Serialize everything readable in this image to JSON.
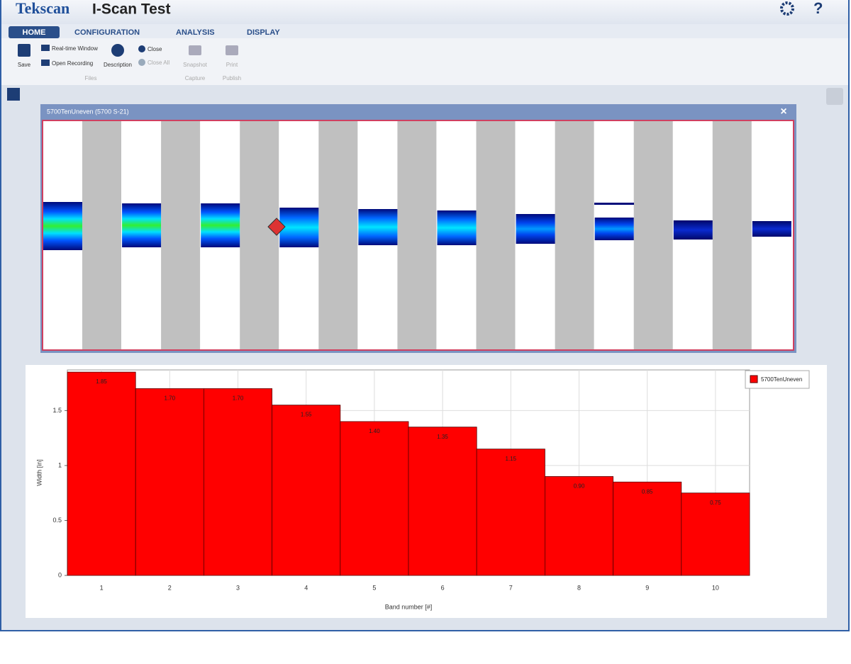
{
  "app": {
    "brand": "Tekscan",
    "title": "I-Scan Test",
    "help": "?",
    "tabs": [
      "HOME",
      "CONFIGURATION",
      "ANALYSIS",
      "DISPLAY"
    ],
    "ribbon": {
      "save": "Save",
      "realtime": "Real-time Window",
      "open": "Open Recording",
      "description": "Description",
      "close": "Close",
      "close_all": "Close All",
      "files": "Files",
      "snapshot": "Snapshot",
      "capture": "Capture",
      "print": "Print",
      "publish": "Publish"
    },
    "window_title": "5700TenUneven (5700 S-21)"
  },
  "chart_data": {
    "type": "bar",
    "xlabel": "Band number [#]",
    "ylabel": "Width [in]",
    "categories": [
      "1",
      "2",
      "3",
      "4",
      "5",
      "6",
      "7",
      "8",
      "9",
      "10"
    ],
    "series": [
      {
        "name": "5700TenUneven",
        "color": "#ff0000",
        "values": [
          1.85,
          1.7,
          1.7,
          1.55,
          1.4,
          1.35,
          1.15,
          0.9,
          0.85,
          0.75
        ],
        "value_labels": [
          "1.85",
          "1.70",
          "1.70",
          "1.55",
          "1.40",
          "1.35",
          "1.15",
          "0.90",
          "0.85",
          "0.75"
        ]
      }
    ],
    "ylim": [
      0,
      1.87
    ],
    "yticks": [
      0,
      0.5,
      1,
      1.5
    ],
    "grid": true,
    "legend": "right"
  }
}
